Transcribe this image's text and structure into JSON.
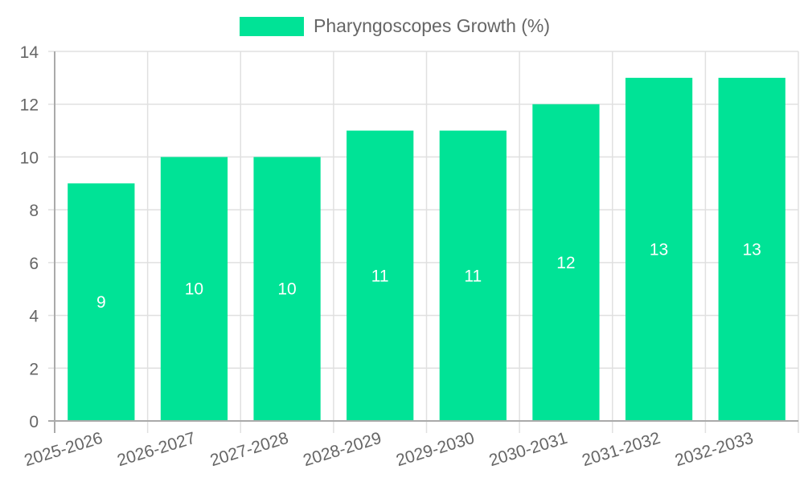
{
  "chart_data": {
    "type": "bar",
    "title": "",
    "categories": [
      "2025-2026",
      "2026-2027",
      "2027-2028",
      "2028-2029",
      "2029-2030",
      "2030-2031",
      "2031-2032",
      "2032-2033"
    ],
    "series": [
      {
        "name": "Pharyngoscopes Growth (%)",
        "values": [
          9,
          10,
          10,
          11,
          11,
          12,
          13,
          13
        ],
        "color": "#00e396"
      }
    ],
    "xlabel": "",
    "ylabel": "",
    "ylim": [
      0,
      14
    ],
    "yticks": [
      0,
      2,
      4,
      6,
      8,
      10,
      12,
      14
    ],
    "grid": true,
    "legend_position": "top",
    "data_labels": true
  },
  "legend": {
    "label": "Pharyngoscopes Growth (%)",
    "color": "#00e396"
  }
}
